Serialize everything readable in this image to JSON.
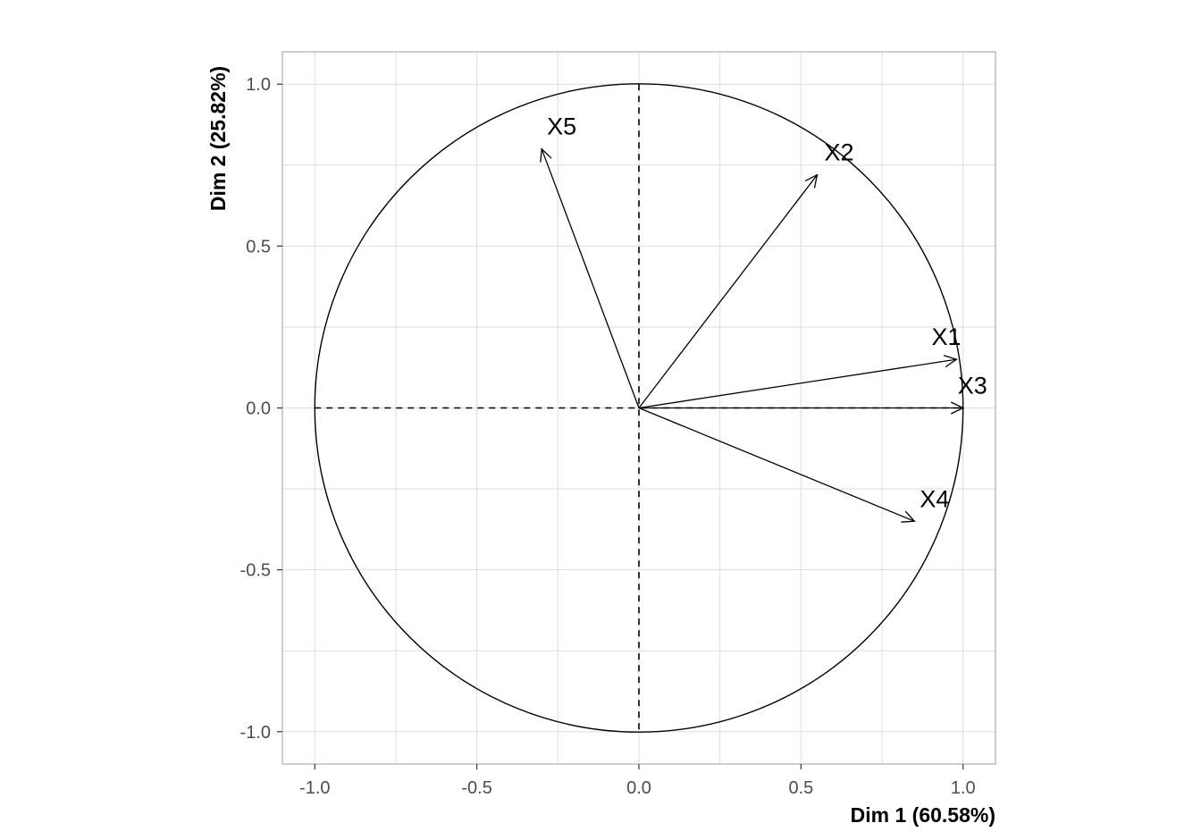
{
  "chart_data": {
    "type": "scatter",
    "subtype": "pca-correlation-circle",
    "title": "",
    "xlabel": "Dim 1 (60.58%)",
    "ylabel": "Dim 2 (25.82%)",
    "xlim": [
      -1.1,
      1.1
    ],
    "ylim": [
      -1.1,
      1.1
    ],
    "x_ticks": [
      -1.0,
      -0.5,
      0.0,
      0.5,
      1.0
    ],
    "y_ticks": [
      -1.0,
      -0.5,
      0.0,
      0.5,
      1.0
    ],
    "x_tick_labels": [
      "-1.0",
      "-0.5",
      "0.0",
      "0.5",
      "1.0"
    ],
    "y_tick_labels": [
      "-1.0",
      "-0.5",
      "0.0",
      "0.5",
      "1.0"
    ],
    "grid": true,
    "unit_circle": true,
    "reference_lines": "dashed at x=0 and y=0",
    "variables": [
      {
        "name": "X1",
        "x": 0.98,
        "y": 0.15
      },
      {
        "name": "X2",
        "x": 0.55,
        "y": 0.72
      },
      {
        "name": "X3",
        "x": 1.0,
        "y": 0.0
      },
      {
        "name": "X4",
        "x": 0.85,
        "y": -0.35
      },
      {
        "name": "X5",
        "x": -0.3,
        "y": 0.8
      }
    ],
    "colors": {
      "grid": "#dedede",
      "panel_border": "#b3b3b3",
      "ink": "#000000",
      "tick_text": "#4d4d4d"
    }
  }
}
